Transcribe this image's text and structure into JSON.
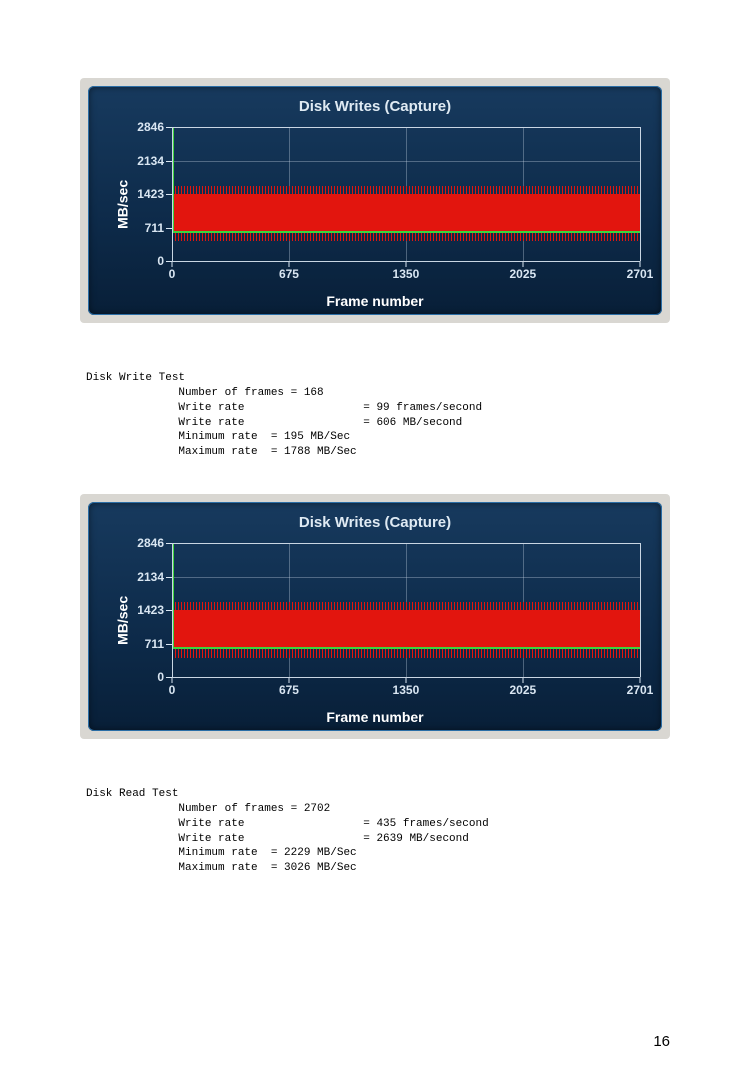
{
  "page_number": "16",
  "chart1": {
    "type": "line",
    "title": "Disk Writes (Capture)",
    "ylabel": "MB/sec",
    "xlabel": "Frame number",
    "ylim": [
      0,
      2846
    ],
    "xlim": [
      0,
      2701
    ],
    "xticks": [
      0,
      675,
      1350,
      2025,
      2701
    ],
    "yticks": [
      0,
      711,
      1423,
      2134,
      2846
    ],
    "bg_gradient_top": "#173a5e",
    "bg_gradient_bottom": "#081f38",
    "grid_color": "#8aa4bd",
    "series_red": {
      "band_low": 500,
      "band_high": 1550,
      "color": "#e2150e"
    },
    "series_green": {
      "start_value": 2846,
      "settle_value": 640,
      "settle_frame": 70,
      "color": "#3ed43e"
    },
    "title_fontsize": 15,
    "label_fontsize": 14,
    "tick_fontsize": 12
  },
  "stats1": {
    "heading": "Disk Write Test",
    "frames_label": "Number of frames",
    "frames_value": "168",
    "rate1_label": "Write rate",
    "rate1_value": "= 99 frames/second",
    "rate2_label": "Write rate",
    "rate2_value": "= 606 MB/second",
    "min_label": "Minimum rate",
    "min_value": "= 195 MB/Sec",
    "max_label": "Maximum rate",
    "max_value": "= 1788 MB/Sec"
  },
  "chart2": {
    "type": "line",
    "title": "Disk Writes (Capture)",
    "ylabel": "MB/sec",
    "xlabel": "Frame number",
    "ylim": [
      0,
      2846
    ],
    "xlim": [
      0,
      2701
    ],
    "xticks": [
      0,
      675,
      1350,
      2025,
      2701
    ],
    "yticks": [
      0,
      711,
      1423,
      2134,
      2846
    ],
    "bg_gradient_top": "#173a5e",
    "bg_gradient_bottom": "#081f38",
    "grid_color": "#8aa4bd",
    "series_red": {
      "band_low": 500,
      "band_high": 1550,
      "color": "#e2150e"
    },
    "series_green": {
      "start_value": 2846,
      "settle_value": 640,
      "settle_frame": 70,
      "color": "#3ed43e"
    },
    "title_fontsize": 15,
    "label_fontsize": 14,
    "tick_fontsize": 12
  },
  "stats2": {
    "heading": "Disk Read Test",
    "frames_label": "Number of frames",
    "frames_value": "2702",
    "rate1_label": "Write rate",
    "rate1_value": "= 435 frames/second",
    "rate2_label": "Write rate",
    "rate2_value": "= 2639 MB/second",
    "min_label": "Minimum rate",
    "min_value": "= 2229 MB/Sec",
    "max_label": "Maximum rate",
    "max_value": "= 3026 MB/Sec"
  }
}
